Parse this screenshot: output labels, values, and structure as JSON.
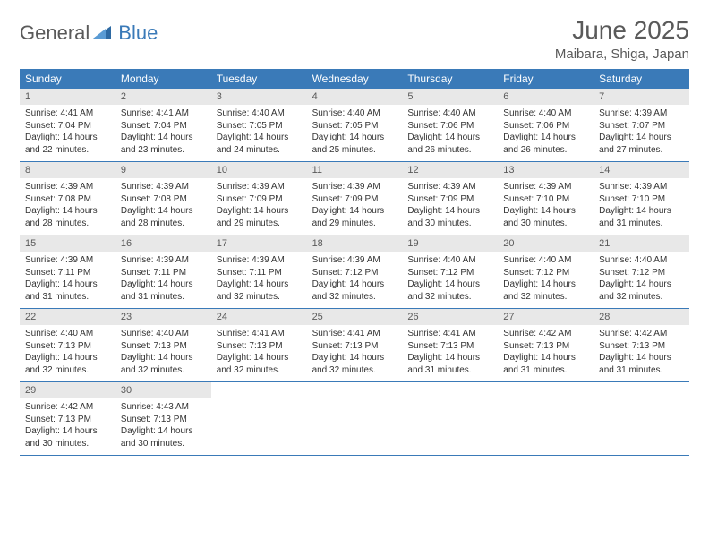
{
  "brand": {
    "part1": "General",
    "part2": "Blue"
  },
  "title": "June 2025",
  "location": "Maibara, Shiga, Japan",
  "colors": {
    "header_bg": "#3a7ab8",
    "header_text": "#ffffff",
    "daynum_bg": "#e8e8e8",
    "text_gray": "#5a5a5a",
    "body_text": "#333333",
    "divider": "#3a7ab8",
    "background": "#ffffff"
  },
  "typography": {
    "title_fontsize": 28,
    "location_fontsize": 15,
    "dayheader_fontsize": 12,
    "daynum_fontsize": 11,
    "body_fontsize": 10
  },
  "day_names": [
    "Sunday",
    "Monday",
    "Tuesday",
    "Wednesday",
    "Thursday",
    "Friday",
    "Saturday"
  ],
  "weeks": [
    [
      {
        "n": "1",
        "sr": "Sunrise: 4:41 AM",
        "ss": "Sunset: 7:04 PM",
        "d1": "Daylight: 14 hours",
        "d2": "and 22 minutes."
      },
      {
        "n": "2",
        "sr": "Sunrise: 4:41 AM",
        "ss": "Sunset: 7:04 PM",
        "d1": "Daylight: 14 hours",
        "d2": "and 23 minutes."
      },
      {
        "n": "3",
        "sr": "Sunrise: 4:40 AM",
        "ss": "Sunset: 7:05 PM",
        "d1": "Daylight: 14 hours",
        "d2": "and 24 minutes."
      },
      {
        "n": "4",
        "sr": "Sunrise: 4:40 AM",
        "ss": "Sunset: 7:05 PM",
        "d1": "Daylight: 14 hours",
        "d2": "and 25 minutes."
      },
      {
        "n": "5",
        "sr": "Sunrise: 4:40 AM",
        "ss": "Sunset: 7:06 PM",
        "d1": "Daylight: 14 hours",
        "d2": "and 26 minutes."
      },
      {
        "n": "6",
        "sr": "Sunrise: 4:40 AM",
        "ss": "Sunset: 7:06 PM",
        "d1": "Daylight: 14 hours",
        "d2": "and 26 minutes."
      },
      {
        "n": "7",
        "sr": "Sunrise: 4:39 AM",
        "ss": "Sunset: 7:07 PM",
        "d1": "Daylight: 14 hours",
        "d2": "and 27 minutes."
      }
    ],
    [
      {
        "n": "8",
        "sr": "Sunrise: 4:39 AM",
        "ss": "Sunset: 7:08 PM",
        "d1": "Daylight: 14 hours",
        "d2": "and 28 minutes."
      },
      {
        "n": "9",
        "sr": "Sunrise: 4:39 AM",
        "ss": "Sunset: 7:08 PM",
        "d1": "Daylight: 14 hours",
        "d2": "and 28 minutes."
      },
      {
        "n": "10",
        "sr": "Sunrise: 4:39 AM",
        "ss": "Sunset: 7:09 PM",
        "d1": "Daylight: 14 hours",
        "d2": "and 29 minutes."
      },
      {
        "n": "11",
        "sr": "Sunrise: 4:39 AM",
        "ss": "Sunset: 7:09 PM",
        "d1": "Daylight: 14 hours",
        "d2": "and 29 minutes."
      },
      {
        "n": "12",
        "sr": "Sunrise: 4:39 AM",
        "ss": "Sunset: 7:09 PM",
        "d1": "Daylight: 14 hours",
        "d2": "and 30 minutes."
      },
      {
        "n": "13",
        "sr": "Sunrise: 4:39 AM",
        "ss": "Sunset: 7:10 PM",
        "d1": "Daylight: 14 hours",
        "d2": "and 30 minutes."
      },
      {
        "n": "14",
        "sr": "Sunrise: 4:39 AM",
        "ss": "Sunset: 7:10 PM",
        "d1": "Daylight: 14 hours",
        "d2": "and 31 minutes."
      }
    ],
    [
      {
        "n": "15",
        "sr": "Sunrise: 4:39 AM",
        "ss": "Sunset: 7:11 PM",
        "d1": "Daylight: 14 hours",
        "d2": "and 31 minutes."
      },
      {
        "n": "16",
        "sr": "Sunrise: 4:39 AM",
        "ss": "Sunset: 7:11 PM",
        "d1": "Daylight: 14 hours",
        "d2": "and 31 minutes."
      },
      {
        "n": "17",
        "sr": "Sunrise: 4:39 AM",
        "ss": "Sunset: 7:11 PM",
        "d1": "Daylight: 14 hours",
        "d2": "and 32 minutes."
      },
      {
        "n": "18",
        "sr": "Sunrise: 4:39 AM",
        "ss": "Sunset: 7:12 PM",
        "d1": "Daylight: 14 hours",
        "d2": "and 32 minutes."
      },
      {
        "n": "19",
        "sr": "Sunrise: 4:40 AM",
        "ss": "Sunset: 7:12 PM",
        "d1": "Daylight: 14 hours",
        "d2": "and 32 minutes."
      },
      {
        "n": "20",
        "sr": "Sunrise: 4:40 AM",
        "ss": "Sunset: 7:12 PM",
        "d1": "Daylight: 14 hours",
        "d2": "and 32 minutes."
      },
      {
        "n": "21",
        "sr": "Sunrise: 4:40 AM",
        "ss": "Sunset: 7:12 PM",
        "d1": "Daylight: 14 hours",
        "d2": "and 32 minutes."
      }
    ],
    [
      {
        "n": "22",
        "sr": "Sunrise: 4:40 AM",
        "ss": "Sunset: 7:13 PM",
        "d1": "Daylight: 14 hours",
        "d2": "and 32 minutes."
      },
      {
        "n": "23",
        "sr": "Sunrise: 4:40 AM",
        "ss": "Sunset: 7:13 PM",
        "d1": "Daylight: 14 hours",
        "d2": "and 32 minutes."
      },
      {
        "n": "24",
        "sr": "Sunrise: 4:41 AM",
        "ss": "Sunset: 7:13 PM",
        "d1": "Daylight: 14 hours",
        "d2": "and 32 minutes."
      },
      {
        "n": "25",
        "sr": "Sunrise: 4:41 AM",
        "ss": "Sunset: 7:13 PM",
        "d1": "Daylight: 14 hours",
        "d2": "and 32 minutes."
      },
      {
        "n": "26",
        "sr": "Sunrise: 4:41 AM",
        "ss": "Sunset: 7:13 PM",
        "d1": "Daylight: 14 hours",
        "d2": "and 31 minutes."
      },
      {
        "n": "27",
        "sr": "Sunrise: 4:42 AM",
        "ss": "Sunset: 7:13 PM",
        "d1": "Daylight: 14 hours",
        "d2": "and 31 minutes."
      },
      {
        "n": "28",
        "sr": "Sunrise: 4:42 AM",
        "ss": "Sunset: 7:13 PM",
        "d1": "Daylight: 14 hours",
        "d2": "and 31 minutes."
      }
    ],
    [
      {
        "n": "29",
        "sr": "Sunrise: 4:42 AM",
        "ss": "Sunset: 7:13 PM",
        "d1": "Daylight: 14 hours",
        "d2": "and 30 minutes."
      },
      {
        "n": "30",
        "sr": "Sunrise: 4:43 AM",
        "ss": "Sunset: 7:13 PM",
        "d1": "Daylight: 14 hours",
        "d2": "and 30 minutes."
      },
      null,
      null,
      null,
      null,
      null
    ]
  ]
}
